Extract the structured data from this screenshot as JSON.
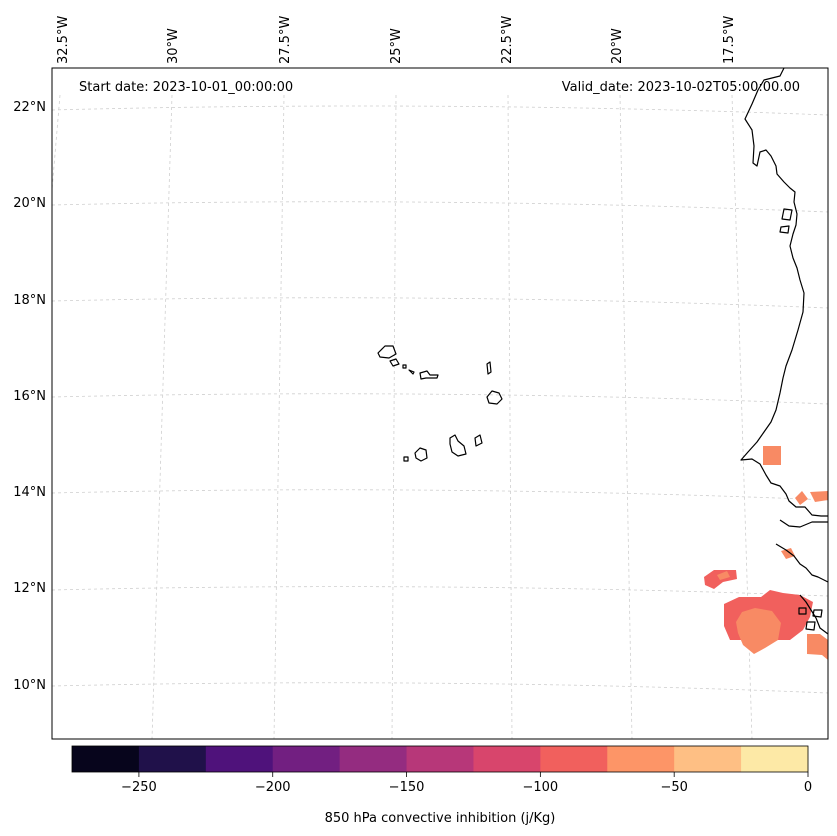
{
  "map": {
    "start_label": "Start date: 2023-10-01_00:00:00",
    "valid_label": "Valid_date: 2023-10-02T05:00:00.00",
    "lon_labels": [
      "32.5°W",
      "30°W",
      "27.5°W",
      "25°W",
      "22.5°W",
      "20°W",
      "17.5°W"
    ],
    "lat_labels": [
      "22°N",
      "20°N",
      "18°N",
      "16°N",
      "14°N",
      "12°N",
      "10°N"
    ],
    "features": [
      "west-african-coastline",
      "cape-verde-islands",
      "convective-inhibition-contours"
    ]
  },
  "colorbar": {
    "label": "850 hPa convective inhibition (j/Kg)",
    "ticks": [
      "−250",
      "−200",
      "−150",
      "−100",
      "−50",
      "0"
    ],
    "colors": [
      "#07051c",
      "#20114a",
      "#4f127b",
      "#721f81",
      "#942c80",
      "#b73779",
      "#d8456c",
      "#f1605d",
      "#fd9567",
      "#febf84",
      "#fde9a6"
    ],
    "range": [
      -275,
      0
    ]
  }
}
